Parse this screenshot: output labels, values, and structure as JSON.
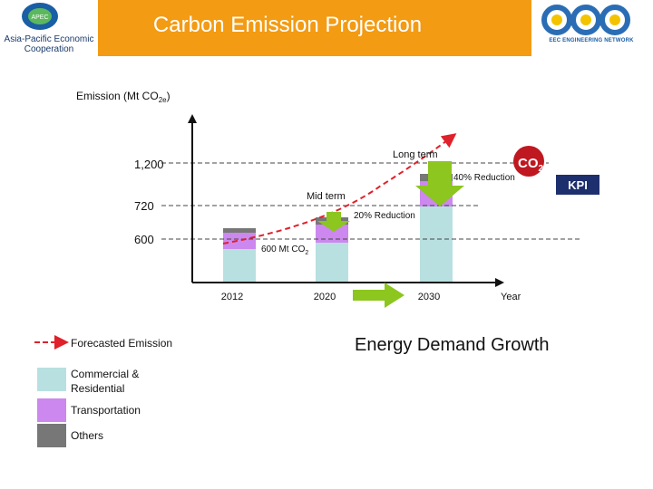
{
  "header": {
    "title": "Carbon Emission Projection",
    "left_logo_text": "Asia-Pacific Economic Cooperation",
    "left_logo_mark": "APEC",
    "right_logo_text": "EEC ENGINEERING NETWORK",
    "colors": {
      "band": "#f39b13",
      "title_text": "#ffffff"
    }
  },
  "chart_data": {
    "type": "bar",
    "ylabel": "Emission (Mt CO",
    "ylabel_sub": "2e",
    "ylabel_close": ")",
    "xlabel": "Year",
    "categories": [
      "2012",
      "2020",
      "2030"
    ],
    "y_ticks": [
      "1,200",
      "720",
      "600"
    ],
    "series": [
      {
        "name": "Commercial & Residential",
        "color": "#b8e0e0",
        "values": [
          370,
          440,
          840
        ]
      },
      {
        "name": "Transportation",
        "color": "#cc88ee",
        "values": [
          180,
          200,
          280
        ]
      },
      {
        "name": "Others",
        "color": "#777777",
        "values": [
          50,
          80,
          80
        ]
      }
    ],
    "forecast": {
      "name": "Forecasted Emission",
      "color": "#e0202a"
    },
    "annotations": {
      "long_term": "Long term",
      "mid_term": "Mid term",
      "reduction_40": "40% Reduction",
      "reduction_20": "20% Reduction",
      "base": "600 Mt CO",
      "base_sub": "2",
      "co2": "CO",
      "co2_sub": "2",
      "kpi": "KPI",
      "growth": "Energy Demand Growth"
    },
    "accent_colors": {
      "arrow_green": "#8cc61e",
      "kpi_bg": "#1e2f6e",
      "co2_bg": "#c01820"
    }
  },
  "legend": {
    "forecast": "Forecasted Emission",
    "commercial": "Commercial & Residential",
    "transportation": "Transportation",
    "others": "Others"
  }
}
